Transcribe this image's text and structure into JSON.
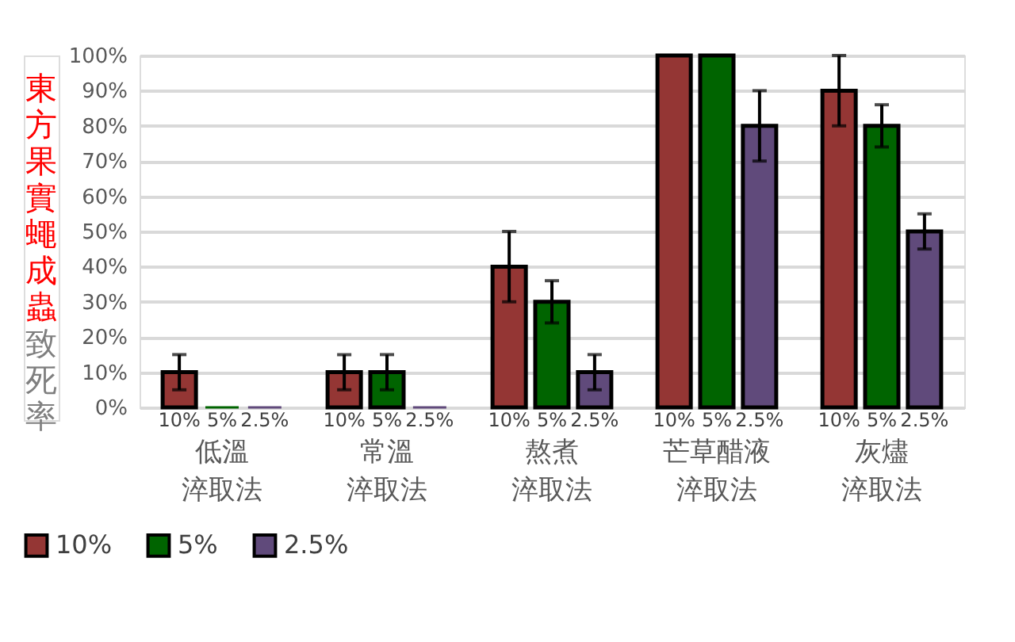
{
  "chart_data": {
    "type": "bar",
    "ylabel": "東方果實蠅成蟲致死率",
    "categories": [
      "低溫淬取法",
      "常溫淬取法",
      "熬煮淬取法",
      "芒草醋液淬取法",
      "灰燼淬取法"
    ],
    "series": [
      {
        "name": "10%",
        "color": "#943634",
        "values": [
          10,
          10,
          40,
          100,
          90
        ],
        "errors": [
          5,
          5,
          10,
          null,
          10
        ]
      },
      {
        "name": "5%",
        "color": "#006400",
        "values": [
          0,
          10,
          30,
          100,
          80
        ],
        "errors": [
          null,
          5,
          6,
          null,
          6
        ]
      },
      {
        "name": "2.5%",
        "color": "#604a7b",
        "values": [
          0,
          0,
          10,
          80,
          50
        ],
        "errors": [
          null,
          null,
          5,
          10,
          5
        ]
      }
    ],
    "ylim": [
      0,
      100
    ],
    "yticks": [
      {
        "value": 0,
        "label": "0%"
      },
      {
        "value": 10,
        "label": "10%"
      },
      {
        "value": 20,
        "label": "20%"
      },
      {
        "value": 30,
        "label": "30%"
      },
      {
        "value": 40,
        "label": "40%"
      },
      {
        "value": 50,
        "label": "50%"
      },
      {
        "value": 60,
        "label": "60%"
      },
      {
        "value": 70,
        "label": "70%"
      },
      {
        "value": 80,
        "label": "80%"
      },
      {
        "value": 90,
        "label": "90%"
      },
      {
        "value": 100,
        "label": "100%"
      }
    ],
    "grid": "y",
    "legend": "bottom"
  }
}
